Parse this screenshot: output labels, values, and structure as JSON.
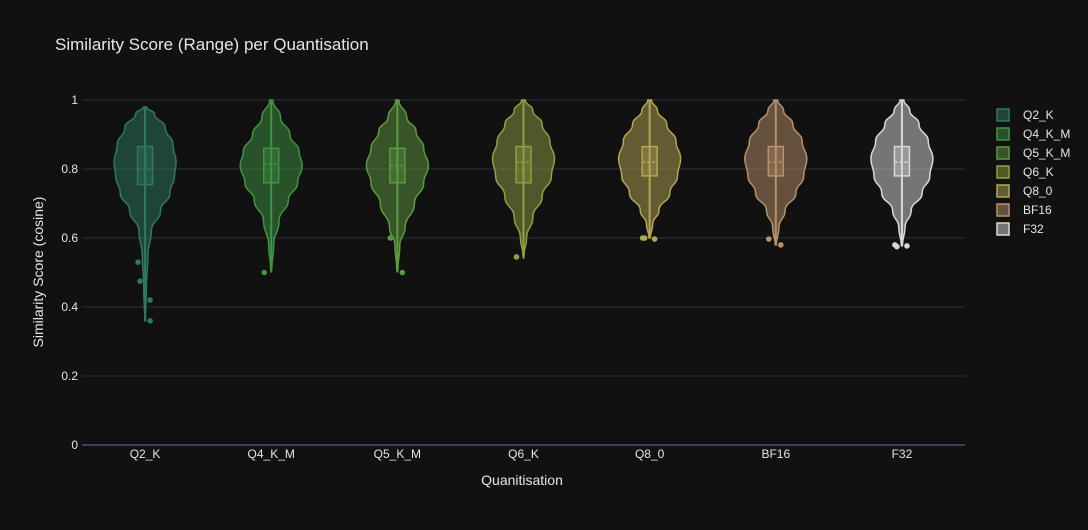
{
  "chart_data": {
    "type": "violin",
    "title": "Similarity Score (Range) per Quantisation",
    "xlabel": "Quanitisation",
    "ylabel": "Similarity Score (cosine)",
    "ylim": [
      0,
      1
    ],
    "yticks": [
      0,
      0.2,
      0.4,
      0.6,
      0.8,
      1
    ],
    "ytick_labels": [
      "0",
      "0.2",
      "0.4",
      "0.6",
      "0.8",
      "1"
    ],
    "grid": true,
    "legend_position": "right",
    "categories": [
      "Q2_K",
      "Q4_K_M",
      "Q5_K_M",
      "Q6_K",
      "Q8_0",
      "BF16",
      "F32"
    ],
    "series": [
      {
        "name": "Q2_K",
        "color": "#2d7a5f",
        "min": 0.36,
        "q1": 0.755,
        "median": 0.8,
        "q3": 0.865,
        "max": 0.98,
        "outliers": [
          0.53,
          0.42,
          0.475,
          0.36
        ],
        "density": [
          [
            0.36,
            0.01
          ],
          [
            0.45,
            0.04
          ],
          [
            0.55,
            0.09
          ],
          [
            0.62,
            0.2
          ],
          [
            0.68,
            0.5
          ],
          [
            0.73,
            0.8
          ],
          [
            0.78,
            0.95
          ],
          [
            0.82,
            1.0
          ],
          [
            0.87,
            0.9
          ],
          [
            0.92,
            0.65
          ],
          [
            0.96,
            0.3
          ],
          [
            0.98,
            0.05
          ]
        ]
      },
      {
        "name": "Q4_K_M",
        "color": "#3f9444",
        "min": 0.5,
        "q1": 0.76,
        "median": 0.815,
        "q3": 0.86,
        "max": 1.0,
        "outliers": [
          0.5
        ],
        "density": [
          [
            0.51,
            0.02
          ],
          [
            0.58,
            0.08
          ],
          [
            0.65,
            0.25
          ],
          [
            0.71,
            0.55
          ],
          [
            0.76,
            0.85
          ],
          [
            0.81,
            1.0
          ],
          [
            0.85,
            0.9
          ],
          [
            0.9,
            0.6
          ],
          [
            0.95,
            0.3
          ],
          [
            1.0,
            0.05
          ]
        ]
      },
      {
        "name": "Q5_K_M",
        "color": "#5e9a3f",
        "min": 0.5,
        "q1": 0.76,
        "median": 0.81,
        "q3": 0.86,
        "max": 1.0,
        "outliers": [
          0.6,
          0.5
        ],
        "density": [
          [
            0.51,
            0.02
          ],
          [
            0.58,
            0.08
          ],
          [
            0.63,
            0.25
          ],
          [
            0.7,
            0.55
          ],
          [
            0.76,
            0.85
          ],
          [
            0.81,
            1.0
          ],
          [
            0.86,
            0.85
          ],
          [
            0.91,
            0.6
          ],
          [
            0.95,
            0.3
          ],
          [
            1.0,
            0.05
          ]
        ]
      },
      {
        "name": "Q6_K",
        "color": "#8ea043",
        "min": 0.54,
        "q1": 0.76,
        "median": 0.82,
        "q3": 0.865,
        "max": 1.0,
        "outliers": [
          0.545
        ],
        "density": [
          [
            0.55,
            0.02
          ],
          [
            0.6,
            0.1
          ],
          [
            0.66,
            0.3
          ],
          [
            0.72,
            0.6
          ],
          [
            0.78,
            0.9
          ],
          [
            0.83,
            1.0
          ],
          [
            0.88,
            0.85
          ],
          [
            0.93,
            0.6
          ],
          [
            0.97,
            0.3
          ],
          [
            1.0,
            0.06
          ]
        ]
      },
      {
        "name": "Q8_0",
        "color": "#b5a653",
        "min": 0.6,
        "q1": 0.78,
        "median": 0.82,
        "q3": 0.865,
        "max": 1.0,
        "outliers": [
          0.6,
          0.597,
          0.6
        ],
        "density": [
          [
            0.6,
            0.02
          ],
          [
            0.64,
            0.1
          ],
          [
            0.68,
            0.3
          ],
          [
            0.73,
            0.65
          ],
          [
            0.78,
            0.9
          ],
          [
            0.83,
            1.0
          ],
          [
            0.88,
            0.85
          ],
          [
            0.93,
            0.55
          ],
          [
            0.97,
            0.25
          ],
          [
            1.0,
            0.06
          ]
        ]
      },
      {
        "name": "BF16",
        "color": "#b9916a",
        "min": 0.58,
        "q1": 0.78,
        "median": 0.82,
        "q3": 0.865,
        "max": 1.0,
        "outliers": [
          0.597,
          0.58
        ],
        "density": [
          [
            0.58,
            0.02
          ],
          [
            0.63,
            0.1
          ],
          [
            0.68,
            0.3
          ],
          [
            0.73,
            0.65
          ],
          [
            0.78,
            0.9
          ],
          [
            0.83,
            1.0
          ],
          [
            0.88,
            0.85
          ],
          [
            0.93,
            0.55
          ],
          [
            0.97,
            0.25
          ],
          [
            1.0,
            0.06
          ]
        ]
      },
      {
        "name": "F32",
        "color": "#d9d9d9",
        "min": 0.575,
        "q1": 0.78,
        "median": 0.82,
        "q3": 0.865,
        "max": 1.0,
        "outliers": [
          0.58,
          0.577,
          0.575
        ],
        "density": [
          [
            0.58,
            0.02
          ],
          [
            0.63,
            0.1
          ],
          [
            0.68,
            0.3
          ],
          [
            0.73,
            0.65
          ],
          [
            0.78,
            0.9
          ],
          [
            0.83,
            1.0
          ],
          [
            0.88,
            0.85
          ],
          [
            0.93,
            0.55
          ],
          [
            0.97,
            0.25
          ],
          [
            1.0,
            0.06
          ]
        ]
      }
    ]
  }
}
